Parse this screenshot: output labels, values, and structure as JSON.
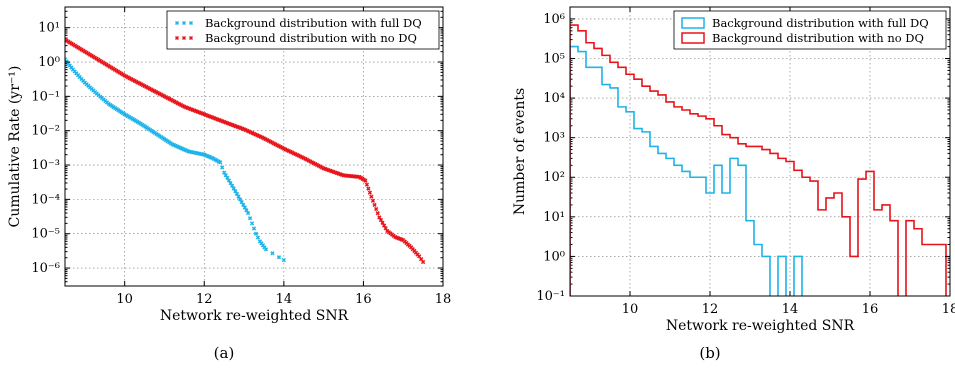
{
  "chart_data": [
    {
      "type": "scatter",
      "panel_label": "(a)",
      "xlabel": "Network re-weighted SNR",
      "ylabel": "Cumulative Rate (yr⁻¹)",
      "xlim": [
        8.5,
        18
      ],
      "ylim": [
        3e-07,
        40
      ],
      "yscale": "log",
      "grid": true,
      "legend_position": "top-right",
      "x_ticks": [
        10,
        12,
        14,
        16,
        18
      ],
      "x_tick_labels": [
        "10",
        "12",
        "14",
        "16",
        "18"
      ],
      "y_ticks": [
        1e-06,
        1e-05,
        0.0001,
        0.001,
        0.01,
        0.1,
        1,
        10
      ],
      "y_tick_labels": [
        "10⁻⁶",
        "10⁻⁵",
        "10⁻⁴",
        "10⁻³",
        "10⁻²",
        "10⁻¹",
        "10⁰",
        "10¹"
      ],
      "series": [
        {
          "name": "Background distribution with full DQ",
          "color": "#1eb4ea",
          "x": [
            8.5,
            8.7,
            9.0,
            9.3,
            9.6,
            10.0,
            10.4,
            10.8,
            11.2,
            11.6,
            12.0,
            12.2,
            12.4,
            12.5,
            12.7,
            12.9,
            13.1,
            13.2,
            13.3,
            13.4,
            13.55,
            14.0
          ],
          "y": [
            1.2,
            0.6,
            0.25,
            0.12,
            0.06,
            0.03,
            0.016,
            0.008,
            0.004,
            0.0025,
            0.002,
            0.0016,
            0.0012,
            0.0006,
            0.00025,
            0.0001,
            4e-05,
            2e-05,
            1e-05,
            6e-06,
            3.5e-06,
            1.7e-06
          ]
        },
        {
          "name": "Background distribution with no DQ",
          "color": "#e8141a",
          "x": [
            8.5,
            9.0,
            9.5,
            10.0,
            10.5,
            11.0,
            11.5,
            12.0,
            12.5,
            13.0,
            13.5,
            14.0,
            14.5,
            15.0,
            15.5,
            15.9,
            16.05,
            16.2,
            16.4,
            16.6,
            16.8,
            17.0,
            17.2,
            17.4,
            17.5
          ],
          "y": [
            4.5,
            2.0,
            0.9,
            0.4,
            0.2,
            0.1,
            0.05,
            0.03,
            0.018,
            0.011,
            0.006,
            0.003,
            0.0016,
            0.0008,
            0.0005,
            0.00045,
            0.00035,
            0.00012,
            3e-05,
            1.2e-05,
            8e-06,
            6.5e-06,
            4e-06,
            2.2e-06,
            1.5e-06
          ]
        }
      ]
    },
    {
      "type": "step",
      "panel_label": "(b)",
      "xlabel": "Network re-weighted SNR",
      "ylabel": "Number of events",
      "xlim": [
        8.5,
        18
      ],
      "ylim": [
        0.1,
        2000000.0
      ],
      "yscale": "log",
      "grid": true,
      "legend_position": "top-right",
      "x_ticks": [
        10,
        12,
        14,
        16,
        18
      ],
      "x_tick_labels": [
        "10",
        "12",
        "14",
        "16",
        "18"
      ],
      "y_ticks": [
        0.1,
        1,
        10,
        100,
        1000,
        10000,
        100000,
        1000000
      ],
      "y_tick_labels": [
        "10⁻¹",
        "10⁰",
        "10¹",
        "10²",
        "10³",
        "10⁴",
        "10⁵",
        "10⁶"
      ],
      "bin_width": 0.2,
      "x_start": 8.5,
      "series": [
        {
          "name": "Background distribution with full DQ",
          "color": "#1eb4ea",
          "values": [
            200000,
            150000,
            60000,
            60000,
            22000,
            18000,
            6000,
            4500,
            1700,
            1400,
            600,
            400,
            300,
            200,
            140,
            100,
            100,
            40,
            200,
            40,
            300,
            200,
            8,
            2,
            1,
            0.01,
            1,
            0.01,
            1,
            0.01
          ],
          "note_zero": "0.01 denotes an empty bin (drawn down off-axis)"
        },
        {
          "name": "Background distribution with no DQ",
          "color": "#e8141a",
          "values": [
            700000,
            500000,
            250000,
            180000,
            120000,
            80000,
            60000,
            40000,
            30000,
            20000,
            15000,
            12000,
            8000,
            6000,
            5000,
            4000,
            3500,
            3000,
            2000,
            1200,
            1000,
            700,
            600,
            600,
            500,
            400,
            300,
            250,
            150,
            100,
            80,
            15,
            30,
            40,
            10,
            1,
            90,
            140,
            15,
            20,
            8,
            0.01,
            8,
            5,
            2,
            2,
            2
          ],
          "note_zero": "0.01 denotes an empty bin (drawn down off-axis)"
        }
      ]
    }
  ]
}
